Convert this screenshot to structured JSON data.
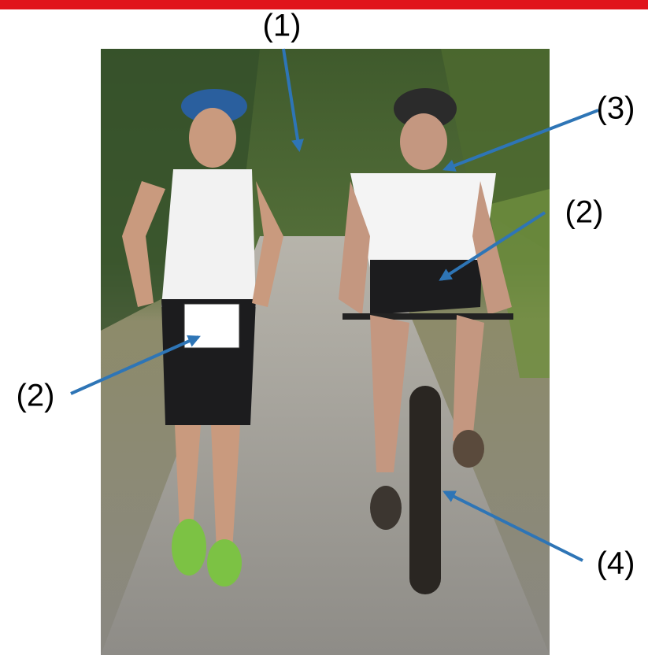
{
  "annotations": [
    {
      "label": "(1)"
    },
    {
      "label": "(3)"
    },
    {
      "label": "(2)"
    },
    {
      "label": "(2)"
    },
    {
      "label": "(4)"
    }
  ]
}
